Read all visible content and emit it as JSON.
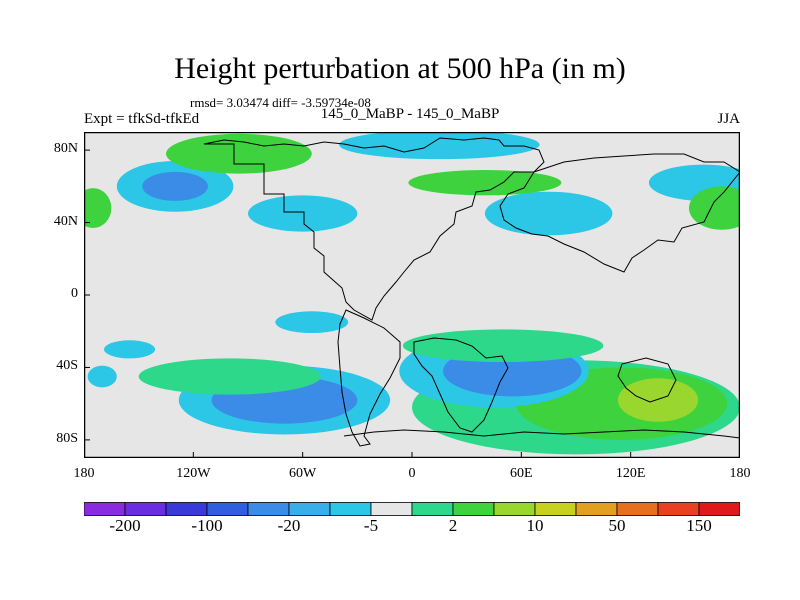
{
  "title": "Height perturbation at 500 hPa (in m)",
  "subtitle_stats": "rmsd= 3.03474 diff= -3.59734e-08",
  "left_label": "Expt = tfkSd-tfkEd",
  "center_label": "145_0_MaBP - 145_0_MaBP",
  "right_label": "JJA",
  "chart_data": {
    "type": "contour-map",
    "title": "Height perturbation at 500 hPa (in m)",
    "variable": "Height perturbation at 500 hPa",
    "units": "m",
    "lon_range": [
      -180,
      180
    ],
    "lat_range": [
      -90,
      90
    ],
    "x_ticks": [
      {
        "value": -180,
        "label": "180"
      },
      {
        "value": -120,
        "label": "120W"
      },
      {
        "value": -60,
        "label": "60W"
      },
      {
        "value": 0,
        "label": "0"
      },
      {
        "value": 60,
        "label": "60E"
      },
      {
        "value": 120,
        "label": "120E"
      },
      {
        "value": 180,
        "label": "180"
      }
    ],
    "y_ticks": [
      {
        "value": 80,
        "label": "80N"
      },
      {
        "value": 40,
        "label": "40N"
      },
      {
        "value": 0,
        "label": "0"
      },
      {
        "value": -40,
        "label": "40S"
      },
      {
        "value": -80,
        "label": "80S"
      }
    ],
    "colorbar": {
      "colors": [
        "#8a2be2",
        "#6a2ee0",
        "#3a3ad8",
        "#2f5fe0",
        "#3b8ce6",
        "#3aaee8",
        "#2cc6e6",
        "#e6e6e6",
        "#2ed88a",
        "#3fd23f",
        "#9ad72e",
        "#c8d020",
        "#e2a020",
        "#e77020",
        "#e84020",
        "#e01a1a"
      ],
      "labels": [
        {
          "index": 1,
          "text": "-200"
        },
        {
          "index": 3,
          "text": "-100"
        },
        {
          "index": 5,
          "text": "-20"
        },
        {
          "index": 7,
          "text": "-5"
        },
        {
          "index": 9,
          "text": "2"
        },
        {
          "index": 11,
          "text": "10"
        },
        {
          "index": 13,
          "text": "50"
        },
        {
          "index": 15,
          "text": "150"
        }
      ]
    },
    "anomaly_regions": [
      {
        "lon": -70,
        "lat": -58,
        "rx": 40,
        "ry": 13,
        "level": "-20",
        "color": "#3b8ce6"
      },
      {
        "lon": -70,
        "lat": -58,
        "rx": 58,
        "ry": 19,
        "level": "-5",
        "color": "#2cc6e6"
      },
      {
        "lon": -100,
        "lat": -45,
        "rx": 50,
        "ry": 10,
        "level": "2",
        "color": "#2ed88a"
      },
      {
        "lon": 55,
        "lat": -42,
        "rx": 38,
        "ry": 14,
        "level": "-20",
        "color": "#3b8ce6"
      },
      {
        "lon": 45,
        "lat": -42,
        "rx": 52,
        "ry": 20,
        "level": "-5",
        "color": "#2cc6e6"
      },
      {
        "lon": 50,
        "lat": -28,
        "rx": 55,
        "ry": 9,
        "level": "2",
        "color": "#2ed88a"
      },
      {
        "lon": 135,
        "lat": -58,
        "rx": 22,
        "ry": 12,
        "level": "10",
        "color": "#9ad72e"
      },
      {
        "lon": 115,
        "lat": -60,
        "rx": 58,
        "ry": 20,
        "level": "2",
        "color": "#3fd23f"
      },
      {
        "lon": 90,
        "lat": -62,
        "rx": 90,
        "ry": 26,
        "level": "1",
        "color": "#2ed88a"
      },
      {
        "lon": -130,
        "lat": 60,
        "rx": 18,
        "ry": 8,
        "level": "-20",
        "color": "#3b8ce6"
      },
      {
        "lon": -130,
        "lat": 60,
        "rx": 32,
        "ry": 14,
        "level": "-5",
        "color": "#2cc6e6"
      },
      {
        "lon": -95,
        "lat": 78,
        "rx": 40,
        "ry": 11,
        "level": "2",
        "color": "#3fd23f"
      },
      {
        "lon": -60,
        "lat": 45,
        "rx": 30,
        "ry": 10,
        "level": "-5",
        "color": "#2cc6e6"
      },
      {
        "lon": 15,
        "lat": 83,
        "rx": 55,
        "ry": 8,
        "level": "-5",
        "color": "#2cc6e6"
      },
      {
        "lon": 40,
        "lat": 62,
        "rx": 42,
        "ry": 7,
        "level": "2",
        "color": "#3fd23f"
      },
      {
        "lon": 75,
        "lat": 45,
        "rx": 35,
        "ry": 12,
        "level": "-5",
        "color": "#2cc6e6"
      },
      {
        "lon": 160,
        "lat": 62,
        "rx": 30,
        "ry": 10,
        "level": "-5",
        "color": "#2cc6e6"
      },
      {
        "lon": 170,
        "lat": 48,
        "rx": 18,
        "ry": 12,
        "level": "2",
        "color": "#3fd23f"
      },
      {
        "lon": -175,
        "lat": 48,
        "rx": 10,
        "ry": 11,
        "level": "2",
        "color": "#3fd23f"
      },
      {
        "lon": -55,
        "lat": -15,
        "rx": 20,
        "ry": 6,
        "level": "-5",
        "color": "#2cc6e6"
      },
      {
        "lon": -155,
        "lat": -30,
        "rx": 14,
        "ry": 5,
        "level": "-5",
        "color": "#2cc6e6"
      },
      {
        "lon": -170,
        "lat": -45,
        "rx": 8,
        "ry": 6,
        "level": "-5",
        "color": "#2cc6e6"
      }
    ]
  }
}
